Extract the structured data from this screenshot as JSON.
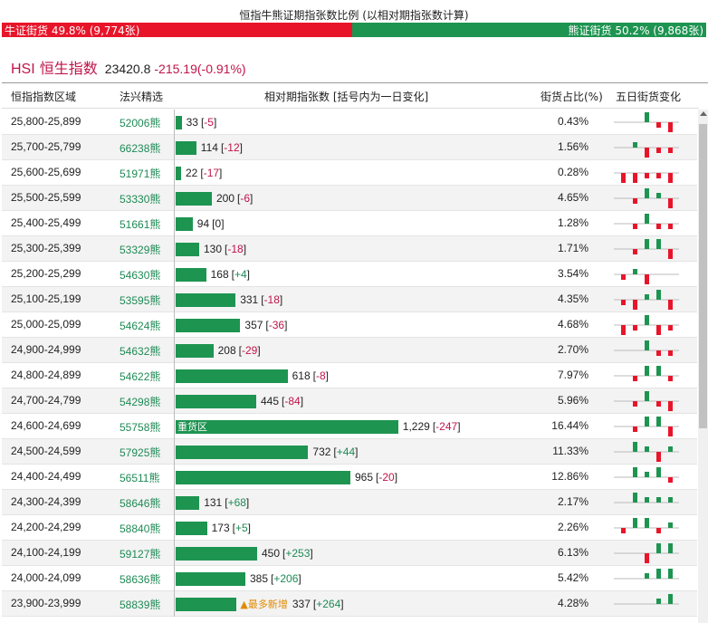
{
  "page_title": "恒指牛熊证期指张数比例 (以相对期指张数计算)",
  "ratio": {
    "bull_label": "牛证街货 49.8% (9,774张)",
    "bear_label": "熊证街货 50.2% (9,868张)",
    "bull_share": 0.498
  },
  "index": {
    "code": "HSI",
    "name": "恒生指数",
    "value": "23420.8",
    "change": "-215.19(-0.91%)"
  },
  "headers": {
    "range": "恒指指数区域",
    "pick": "法兴精选",
    "contracts": "相对期指张数 [括号内为一日变化]",
    "share": "街货占比(%)",
    "five_day": "五日街货变化"
  },
  "bear_char": "熊",
  "heavy_label": "重货区",
  "hot_label": "▲最多新增",
  "colors": {
    "bull_red": "#e8152a",
    "bear_green": "#1e9451",
    "accent": "#c0144a"
  },
  "rows": [
    {
      "range": "25,800-25,899",
      "code": "52006",
      "contracts": 33,
      "contracts_label": "33",
      "change": "-5",
      "share": "0.43%",
      "spark": [
        0,
        0,
        2,
        -1,
        -2
      ]
    },
    {
      "range": "25,700-25,799",
      "code": "66238",
      "contracts": 114,
      "contracts_label": "114",
      "change": "-12",
      "share": "1.56%",
      "spark": [
        0,
        1,
        -2,
        -1,
        -1
      ]
    },
    {
      "range": "25,600-25,699",
      "code": "51971",
      "contracts": 22,
      "contracts_label": "22",
      "change": "-17",
      "share": "0.28%",
      "spark": [
        -2,
        -2,
        -1,
        -1,
        -2
      ]
    },
    {
      "range": "25,500-25,599",
      "code": "53330",
      "contracts": 200,
      "contracts_label": "200",
      "change": "-6",
      "share": "4.65%",
      "spark": [
        0,
        -1,
        2,
        1,
        -2
      ]
    },
    {
      "range": "25,400-25,499",
      "code": "51661",
      "contracts": 94,
      "contracts_label": "94",
      "change": "0",
      "share": "1.28%",
      "spark": [
        0,
        -1,
        2,
        -1,
        -1
      ]
    },
    {
      "range": "25,300-25,399",
      "code": "53329",
      "contracts": 130,
      "contracts_label": "130",
      "change": "-18",
      "share": "1.71%",
      "spark": [
        0,
        -1,
        2,
        2,
        -2
      ]
    },
    {
      "range": "25,200-25,299",
      "code": "54630",
      "contracts": 168,
      "contracts_label": "168",
      "change": "+4",
      "share": "3.54%",
      "spark": [
        -1,
        1,
        -2,
        0,
        0
      ]
    },
    {
      "range": "25,100-25,199",
      "code": "53595",
      "contracts": 331,
      "contracts_label": "331",
      "change": "-18",
      "share": "4.35%",
      "spark": [
        -1,
        -2,
        1,
        2,
        -2
      ]
    },
    {
      "range": "25,000-25,099",
      "code": "54624",
      "contracts": 357,
      "contracts_label": "357",
      "change": "-36",
      "share": "4.68%",
      "spark": [
        -2,
        -1,
        2,
        -2,
        -1
      ]
    },
    {
      "range": "24,900-24,999",
      "code": "54632",
      "contracts": 208,
      "contracts_label": "208",
      "change": "-29",
      "share": "2.70%",
      "spark": [
        0,
        0,
        2,
        -1,
        -1
      ]
    },
    {
      "range": "24,800-24,899",
      "code": "54622",
      "contracts": 618,
      "contracts_label": "618",
      "change": "-8",
      "share": "7.97%",
      "spark": [
        0,
        -1,
        2,
        2,
        -1
      ]
    },
    {
      "range": "24,700-24,799",
      "code": "54298",
      "contracts": 445,
      "contracts_label": "445",
      "change": "-84",
      "share": "5.96%",
      "spark": [
        0,
        -1,
        2,
        -1,
        -2
      ]
    },
    {
      "range": "24,600-24,699",
      "code": "55758",
      "contracts": 1229,
      "contracts_label": "1,229",
      "change": "-247",
      "share": "16.44%",
      "spark": [
        0,
        -1,
        2,
        2,
        -2
      ],
      "heavy": true
    },
    {
      "range": "24,500-24,599",
      "code": "57925",
      "contracts": 732,
      "contracts_label": "732",
      "change": "+44",
      "share": "11.33%",
      "spark": [
        0,
        2,
        1,
        -2,
        1
      ]
    },
    {
      "range": "24,400-24,499",
      "code": "56511",
      "contracts": 965,
      "contracts_label": "965",
      "change": "-20",
      "share": "12.86%",
      "spark": [
        0,
        2,
        1,
        2,
        -1
      ]
    },
    {
      "range": "24,300-24,399",
      "code": "58646",
      "contracts": 131,
      "contracts_label": "131",
      "change": "+68",
      "share": "2.17%",
      "spark": [
        0,
        2,
        1,
        1,
        1
      ]
    },
    {
      "range": "24,200-24,299",
      "code": "58840",
      "contracts": 173,
      "contracts_label": "173",
      "change": "+5",
      "share": "2.26%",
      "spark": [
        -1,
        2,
        2,
        -1,
        1
      ]
    },
    {
      "range": "24,100-24,199",
      "code": "59127",
      "contracts": 450,
      "contracts_label": "450",
      "change": "+253",
      "share": "6.13%",
      "spark": [
        0,
        0,
        -2,
        2,
        2
      ]
    },
    {
      "range": "24,000-24,099",
      "code": "58636",
      "contracts": 385,
      "contracts_label": "385",
      "change": "+206",
      "share": "5.42%",
      "spark": [
        0,
        0,
        1,
        2,
        2
      ]
    },
    {
      "range": "23,900-23,999",
      "code": "58839",
      "contracts": 337,
      "contracts_label": "337",
      "change": "+264",
      "share": "4.28%",
      "spark": [
        0,
        0,
        0,
        1,
        2
      ],
      "hot": true
    }
  ]
}
